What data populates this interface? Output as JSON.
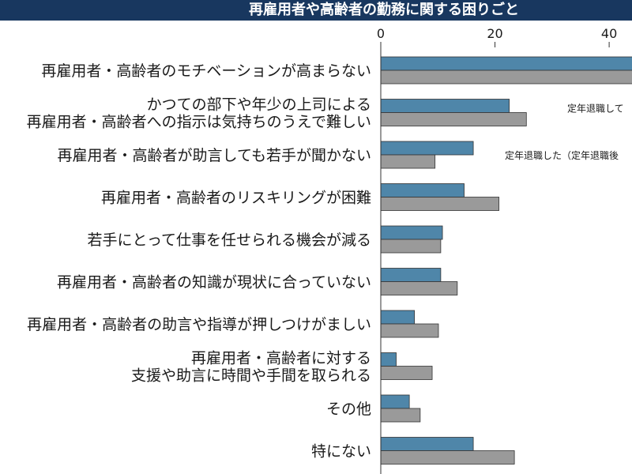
{
  "chart_data": {
    "type": "bar",
    "orientation": "horizontal",
    "title": "再雇用者や高齢者の勤務に関する困りごと",
    "categories": [
      [
        "再雇用者・高齢者のモチベーションが高まらない"
      ],
      [
        "かつての部下や年少の上司による",
        "再雇用者・高齢者への指示は気持ちのうえで難しい"
      ],
      [
        "再雇用者・高齢者が助言しても若手が聞かない"
      ],
      [
        "再雇用者・高齢者のリスキリングが困難"
      ],
      [
        "若手にとって仕事を任せられる機会が減る"
      ],
      [
        "再雇用者・高齢者の知識が現状に合っていない"
      ],
      [
        "再雇用者・高齢者の助言や指導が押しつけがましい"
      ],
      [
        "再雇用者・高齢者に対する",
        "支援や助言に時間や手間を取られる"
      ],
      [
        "その他"
      ],
      [
        "特にない"
      ]
    ],
    "series": [
      {
        "values": [
          45.0,
          22.5,
          16.2,
          14.6,
          10.8,
          10.5,
          5.9,
          2.7,
          5.0,
          16.2
        ],
        "color": "#4f86a9"
      },
      {
        "values": [
          45.0,
          25.5,
          9.5,
          20.7,
          10.5,
          13.4,
          10.1,
          9.0,
          6.9,
          23.4
        ],
        "color": "#9a9a9a"
      }
    ],
    "xlim": [
      0,
      44
    ],
    "xticks": [
      0,
      20,
      40
    ],
    "grid": false,
    "annotations": [
      {
        "text": "定年退職して",
        "category_index": 1
      },
      {
        "text": "定年退職した（定年退職後",
        "category_index": 2
      }
    ]
  }
}
